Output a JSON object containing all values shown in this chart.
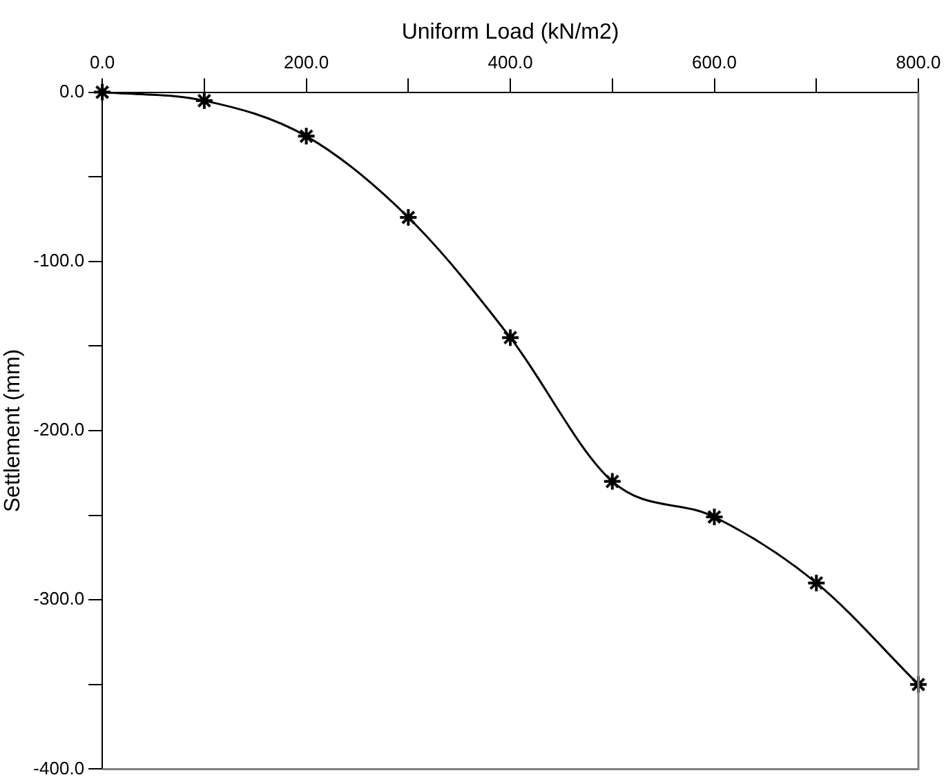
{
  "chart_data": {
    "type": "line",
    "xlabel": "Uniform Load (kN/m2)",
    "ylabel": "Settlement (mm)",
    "x": [
      0,
      100,
      200,
      300,
      400,
      500,
      600,
      700,
      800
    ],
    "series": [
      {
        "color": "#000000",
        "values": [
          0,
          -5,
          -26,
          -74,
          -145,
          -230,
          -251,
          -290,
          -350
        ]
      }
    ],
    "xlim": [
      0,
      800
    ],
    "xticks": [
      {
        "value": 0,
        "label": "0.0"
      },
      {
        "value": 100,
        "label": null
      },
      {
        "value": 200,
        "label": "200.0"
      },
      {
        "value": 300,
        "label": null
      },
      {
        "value": 400,
        "label": "400.0"
      },
      {
        "value": 500,
        "label": null
      },
      {
        "value": 600,
        "label": "600.0"
      },
      {
        "value": 700,
        "label": null
      },
      {
        "value": 800,
        "label": "800.0"
      }
    ],
    "ylim": [
      -400,
      0
    ],
    "yticks": [
      {
        "value": 0,
        "label": "0.0"
      },
      {
        "value": -50,
        "label": null
      },
      {
        "value": -100,
        "label": "-100.0"
      },
      {
        "value": -150,
        "label": null
      },
      {
        "value": -200,
        "label": "-200.0"
      },
      {
        "value": -250,
        "label": null
      },
      {
        "value": -300,
        "label": "-300.0"
      },
      {
        "value": -350,
        "label": null
      },
      {
        "value": -400,
        "label": "-400.0"
      }
    ],
    "grid": false,
    "legend": false,
    "marker": "cross",
    "line_style": "solid"
  }
}
